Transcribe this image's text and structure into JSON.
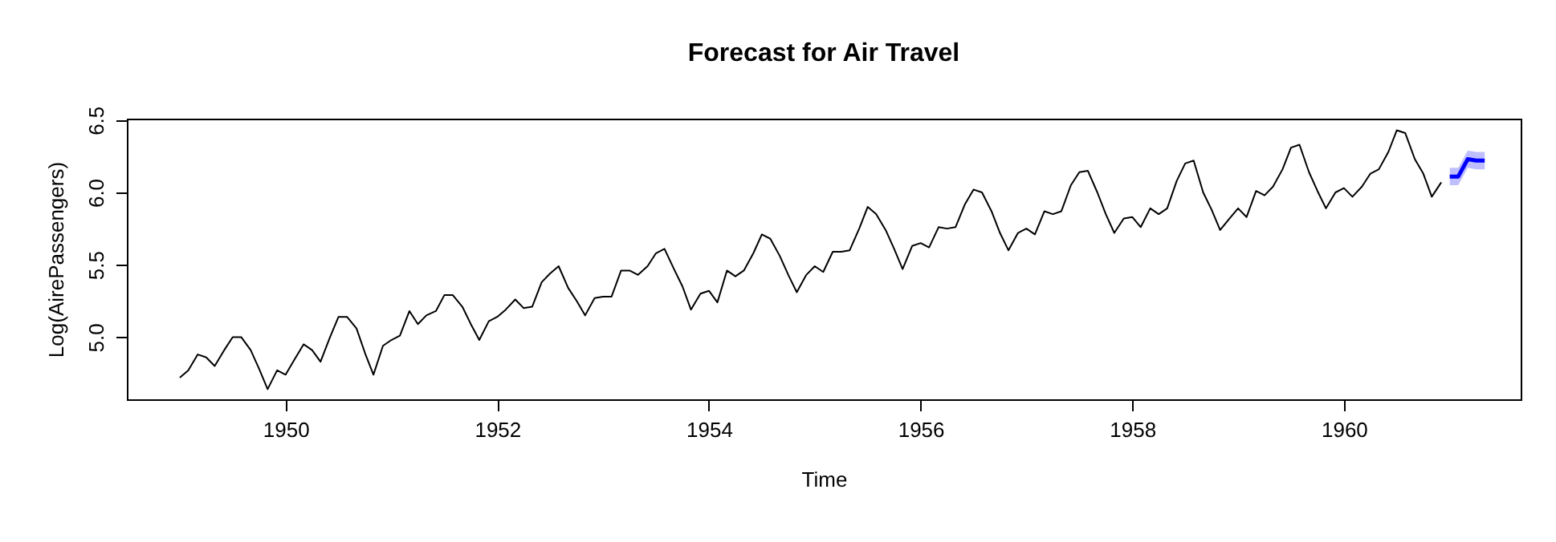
{
  "chart_data": {
    "type": "line",
    "title": "Forecast for Air Travel",
    "xlabel": "Time",
    "ylabel": "Log(AirePassengers)",
    "xlim": [
      1948.5,
      1961.67
    ],
    "xticks": [
      1950,
      1952,
      1954,
      1956,
      1958,
      1960
    ],
    "ylim": [
      4.57,
      6.51
    ],
    "yticks": [
      {
        "value": 5,
        "label": "5.0"
      },
      {
        "value": 5.5,
        "label": "5.5"
      },
      {
        "value": 6,
        "label": "6.0"
      },
      {
        "value": 6.5,
        "label": "6.5"
      }
    ],
    "grid": false,
    "line_style": "solid",
    "series": [
      {
        "color": "#000000",
        "x": [
          1949,
          1949.08,
          1949.17,
          1949.25,
          1949.33,
          1949.42,
          1949.5,
          1949.58,
          1949.67,
          1949.75,
          1949.83,
          1949.92,
          1950,
          1950.08,
          1950.17,
          1950.25,
          1950.33,
          1950.42,
          1950.5,
          1950.58,
          1950.67,
          1950.75,
          1950.83,
          1950.92,
          1951,
          1951.08,
          1951.17,
          1951.25,
          1951.33,
          1951.42,
          1951.5,
          1951.58,
          1951.67,
          1951.75,
          1951.83,
          1951.92,
          1952,
          1952.08,
          1952.17,
          1952.25,
          1952.33,
          1952.42,
          1952.5,
          1952.58,
          1952.67,
          1952.75,
          1952.83,
          1952.92,
          1953,
          1953.08,
          1953.17,
          1953.25,
          1953.33,
          1953.42,
          1953.5,
          1953.58,
          1953.67,
          1953.75,
          1953.83,
          1953.92,
          1954,
          1954.08,
          1954.17,
          1954.25,
          1954.33,
          1954.42,
          1954.5,
          1954.58,
          1954.67,
          1954.75,
          1954.83,
          1954.92,
          1955,
          1955.08,
          1955.17,
          1955.25,
          1955.33,
          1955.42,
          1955.5,
          1955.58,
          1955.67,
          1955.75,
          1955.83,
          1955.92,
          1956,
          1956.08,
          1956.17,
          1956.25,
          1956.33,
          1956.42,
          1956.5,
          1956.58,
          1956.67,
          1956.75,
          1956.83,
          1956.92,
          1957,
          1957.08,
          1957.17,
          1957.25,
          1957.33,
          1957.42,
          1957.5,
          1957.58,
          1957.67,
          1957.75,
          1957.83,
          1957.92,
          1958,
          1958.08,
          1958.17,
          1958.25,
          1958.33,
          1958.42,
          1958.5,
          1958.58,
          1958.67,
          1958.75,
          1958.83,
          1958.92,
          1959,
          1959.08,
          1959.17,
          1959.25,
          1959.33,
          1959.42,
          1959.5,
          1959.58,
          1959.67,
          1959.75,
          1959.83,
          1959.92,
          1960,
          1960.08,
          1960.17,
          1960.25,
          1960.33,
          1960.42,
          1960.5,
          1960.58,
          1960.67,
          1960.75,
          1960.83,
          1960.92
        ],
        "values": [
          4.72,
          4.77,
          4.88,
          4.86,
          4.8,
          4.91,
          5.0,
          5.0,
          4.91,
          4.78,
          4.64,
          4.77,
          4.74,
          4.84,
          4.95,
          4.91,
          4.83,
          5.0,
          5.14,
          5.14,
          5.06,
          4.89,
          4.74,
          4.94,
          4.98,
          5.01,
          5.18,
          5.09,
          5.15,
          5.18,
          5.29,
          5.29,
          5.21,
          5.09,
          4.98,
          5.11,
          5.14,
          5.19,
          5.26,
          5.2,
          5.21,
          5.38,
          5.44,
          5.49,
          5.34,
          5.25,
          5.15,
          5.27,
          5.28,
          5.28,
          5.46,
          5.46,
          5.43,
          5.49,
          5.58,
          5.61,
          5.47,
          5.35,
          5.19,
          5.3,
          5.32,
          5.24,
          5.46,
          5.42,
          5.46,
          5.58,
          5.71,
          5.68,
          5.56,
          5.43,
          5.31,
          5.43,
          5.49,
          5.45,
          5.59,
          5.59,
          5.6,
          5.75,
          5.9,
          5.85,
          5.74,
          5.61,
          5.47,
          5.63,
          5.65,
          5.62,
          5.76,
          5.75,
          5.76,
          5.92,
          6.02,
          6.0,
          5.87,
          5.72,
          5.6,
          5.72,
          5.75,
          5.71,
          5.87,
          5.85,
          5.87,
          6.05,
          6.14,
          6.15,
          6.0,
          5.85,
          5.72,
          5.82,
          5.83,
          5.76,
          5.89,
          5.85,
          5.89,
          6.08,
          6.2,
          6.22,
          6.0,
          5.88,
          5.74,
          5.82,
          5.89,
          5.83,
          6.01,
          5.98,
          6.04,
          6.16,
          6.31,
          6.33,
          6.14,
          6.01,
          5.89,
          6.0,
          6.03,
          5.97,
          6.04,
          6.13,
          6.16,
          6.28,
          6.43,
          6.41,
          6.23,
          6.13,
          5.97,
          6.07
        ]
      },
      {
        "color": "#0000ff",
        "x": [
          1961,
          1961.08,
          1961.17,
          1961.25,
          1961.33
        ],
        "values": [
          6.11,
          6.11,
          6.23,
          6.22,
          6.22
        ],
        "lower": [
          6.05,
          6.05,
          6.17,
          6.16,
          6.16
        ],
        "upper": [
          6.17,
          6.17,
          6.29,
          6.28,
          6.28
        ]
      }
    ]
  }
}
